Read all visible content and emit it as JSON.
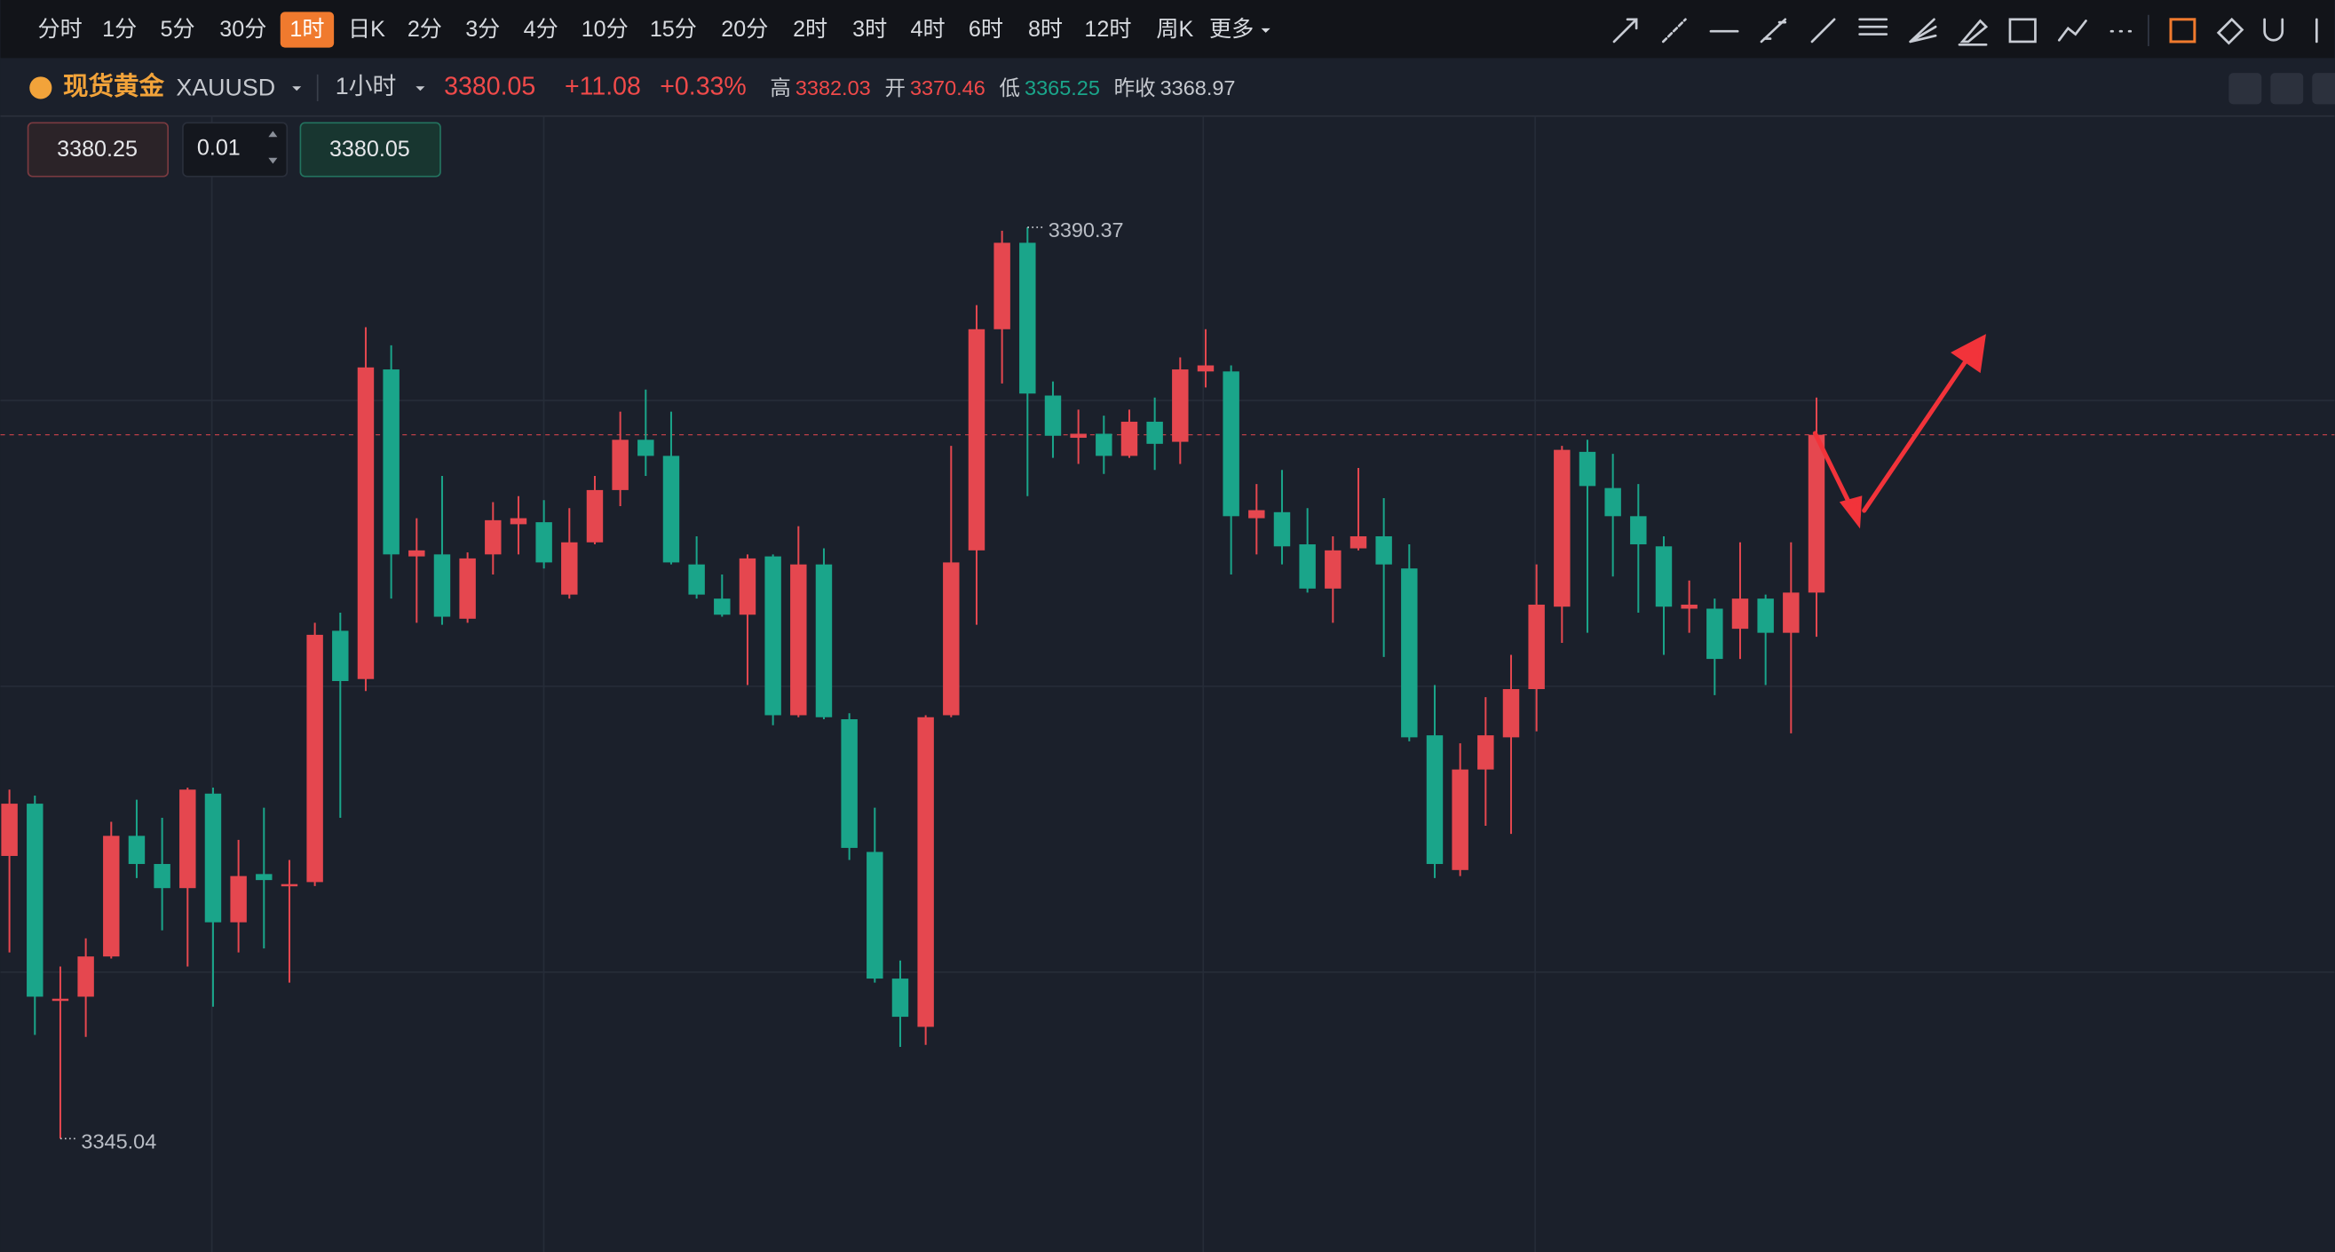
{
  "toolbar": {
    "intervals": [
      "分时",
      "1分",
      "5分",
      "30分",
      "1时",
      "日K",
      "2分",
      "3分",
      "4分",
      "10分",
      "15分",
      "20分",
      "2时",
      "3时",
      "4时",
      "6时",
      "8时",
      "12时",
      "周K",
      "更多"
    ],
    "active": 4
  },
  "quote": {
    "name": "现货黄金",
    "symbol": "XAUUSD",
    "interval": "1小时",
    "price": 3380.05,
    "change": "+11.08",
    "change_pct": "+0.33%",
    "high_label": "高",
    "high": 3382.03,
    "open_label": "开",
    "open": 3370.46,
    "low_label": "低",
    "low": 3365.25,
    "prev_label": "昨收",
    "prev_close": 3368.97
  },
  "order": {
    "sell": "3380.25",
    "qty": "0.01",
    "buy": "3380.05"
  },
  "chart_data": {
    "type": "candlestick",
    "ylim": [
      3339.4,
      3395.9
    ],
    "up_color": "#e5474f",
    "down_color": "#1aa58a",
    "open": [
      3359.1,
      3361.7,
      3351.9,
      3352.1,
      3354.1,
      3360.1,
      3358.7,
      3357.5,
      3362.2,
      3355.8,
      3358.2,
      3357.6,
      3357.8,
      3370.3,
      3367.9,
      3383.3,
      3374.0,
      3374.1,
      3370.9,
      3374.1,
      3375.6,
      3375.7,
      3372.1,
      3374.7,
      3377.3,
      3379.8,
      3379.0,
      3373.6,
      3371.9,
      3371.1,
      3374.0,
      3366.1,
      3373.6,
      3365.9,
      3359.3,
      3353.0,
      3350.6,
      3366.1,
      3374.3,
      3385.3,
      3389.6,
      3382.0,
      3379.9,
      3380.1,
      3379.0,
      3380.7,
      3379.7,
      3383.2,
      3383.2,
      3375.9,
      3376.2,
      3374.6,
      3372.4,
      3374.4,
      3375.0,
      3373.4,
      3365.1,
      3358.4,
      3363.4,
      3365.0,
      3367.4,
      3371.5,
      3379.2,
      3377.4,
      3376.0,
      3374.5,
      3371.4,
      3371.4,
      3370.4,
      3371.9,
      3370.2,
      3372.2
    ],
    "high": [
      3362.4,
      3362.1,
      3353.6,
      3355.0,
      3360.8,
      3361.9,
      3361.0,
      3362.5,
      3362.5,
      3359.9,
      3361.5,
      3358.9,
      3370.7,
      3371.2,
      3385.4,
      3384.5,
      3375.9,
      3378.0,
      3374.2,
      3376.7,
      3377.0,
      3376.8,
      3376.4,
      3378.0,
      3381.2,
      3382.3,
      3381.2,
      3375.0,
      3373.1,
      3374.1,
      3374.1,
      3375.5,
      3374.4,
      3366.2,
      3361.5,
      3353.9,
      3366.1,
      3379.5,
      3386.5,
      3390.2,
      3390.37,
      3382.7,
      3381.3,
      3381.0,
      3381.3,
      3381.9,
      3383.9,
      3385.3,
      3383.5,
      3377.6,
      3378.3,
      3376.4,
      3375.0,
      3378.4,
      3376.9,
      3374.6,
      3367.6,
      3364.7,
      3367.0,
      3369.1,
      3373.6,
      3379.5,
      3379.8,
      3379.1,
      3377.6,
      3375.0,
      3372.8,
      3371.9,
      3374.7,
      3372.1,
      3374.7,
      3381.9
    ],
    "low": [
      3354.3,
      3350.2,
      3345.04,
      3350.1,
      3354.0,
      3358.0,
      3355.4,
      3353.6,
      3351.6,
      3354.3,
      3354.5,
      3352.8,
      3357.6,
      3361.0,
      3367.3,
      3371.9,
      3370.7,
      3370.6,
      3370.7,
      3373.1,
      3374.1,
      3373.4,
      3371.9,
      3374.6,
      3376.5,
      3378.0,
      3373.6,
      3371.9,
      3371.0,
      3367.6,
      3365.6,
      3366.0,
      3365.9,
      3358.9,
      3352.8,
      3349.6,
      3349.7,
      3366.0,
      3370.6,
      3382.6,
      3377.0,
      3378.9,
      3378.6,
      3378.1,
      3378.9,
      3378.3,
      3378.6,
      3382.4,
      3373.1,
      3374.1,
      3373.6,
      3372.2,
      3370.7,
      3374.3,
      3369.0,
      3364.8,
      3358.0,
      3358.1,
      3360.6,
      3360.2,
      3365.3,
      3369.7,
      3370.2,
      3373.0,
      3371.2,
      3369.1,
      3370.2,
      3367.1,
      3368.9,
      3367.6,
      3365.2,
      3370.0
    ],
    "close": [
      3361.7,
      3352.1,
      3352.0,
      3354.1,
      3360.1,
      3358.7,
      3357.5,
      3362.4,
      3355.8,
      3358.1,
      3357.9,
      3357.7,
      3370.1,
      3367.8,
      3383.4,
      3374.1,
      3374.3,
      3371.0,
      3373.9,
      3375.8,
      3375.9,
      3373.7,
      3374.7,
      3377.3,
      3379.8,
      3379.0,
      3373.7,
      3372.1,
      3371.1,
      3373.9,
      3366.1,
      3373.6,
      3366.0,
      3359.5,
      3353.0,
      3351.1,
      3366.0,
      3373.7,
      3385.3,
      3389.6,
      3382.1,
      3380.0,
      3380.1,
      3379.0,
      3380.7,
      3379.6,
      3383.3,
      3383.5,
      3376.0,
      3376.3,
      3374.5,
      3372.4,
      3374.3,
      3375.0,
      3373.6,
      3365.0,
      3358.7,
      3363.4,
      3365.1,
      3367.4,
      3371.6,
      3379.3,
      3377.5,
      3376.0,
      3374.6,
      3371.5,
      3371.6,
      3368.9,
      3371.9,
      3370.2,
      3372.2,
      3380.05
    ]
  }
}
